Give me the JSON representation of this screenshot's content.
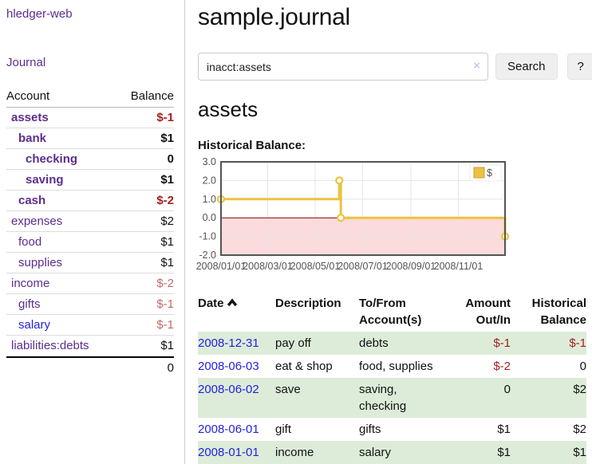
{
  "brand": "hledger-web",
  "nav": {
    "journal": "Journal"
  },
  "sidebar": {
    "col_account": "Account",
    "col_balance": "Balance",
    "accounts": [
      {
        "name": "assets",
        "balance": "$-1",
        "indent": 1,
        "bold": true,
        "balance_class": "neg-strong"
      },
      {
        "name": "bank",
        "balance": "$1",
        "indent": 2,
        "bold": true,
        "balance_class": ""
      },
      {
        "name": "checking",
        "balance": "0",
        "indent": 3,
        "bold": true,
        "balance_class": ""
      },
      {
        "name": "saving",
        "balance": "$1",
        "indent": 3,
        "bold": true,
        "balance_class": ""
      },
      {
        "name": "cash",
        "balance": "$-2",
        "indent": 2,
        "bold": true,
        "balance_class": "neg-strong"
      },
      {
        "name": "expenses",
        "balance": "$2",
        "indent": 1,
        "bold": false,
        "balance_class": ""
      },
      {
        "name": "food",
        "balance": "$1",
        "indent": 2,
        "bold": false,
        "balance_class": ""
      },
      {
        "name": "supplies",
        "balance": "$1",
        "indent": 2,
        "bold": false,
        "balance_class": ""
      },
      {
        "name": "income",
        "balance": "$-2",
        "indent": 1,
        "bold": false,
        "balance_class": "neg-soft"
      },
      {
        "name": "gifts",
        "balance": "$-1",
        "indent": 2,
        "bold": false,
        "balance_class": "neg-soft"
      },
      {
        "name": "salary",
        "balance": "$-1",
        "indent": 2,
        "bold": false,
        "balance_class": "neg-soft",
        "link_color": "blue"
      },
      {
        "name": "liabilities:debts",
        "balance": "$1",
        "indent": 1,
        "bold": false,
        "balance_class": ""
      }
    ],
    "total": "0"
  },
  "header": {
    "title": "sample.journal"
  },
  "search": {
    "value": "inacct:assets",
    "clear": "×",
    "button": "Search",
    "help": "?"
  },
  "account_view": {
    "heading": "assets",
    "section_label": "Historical Balance:"
  },
  "chart_data": {
    "type": "line",
    "title": "Historical Balance",
    "step": true,
    "x_start": "2008-01-01",
    "x_end": "2008-12-31",
    "x_ticks": [
      "2008/01/01",
      "2008/03/01",
      "2008/05/01",
      "2008/07/01",
      "2008/09/01",
      "2008/11/01"
    ],
    "y_ticks": [
      3,
      2,
      1,
      0,
      -1,
      -2
    ],
    "ylim": [
      -2,
      3
    ],
    "series": [
      {
        "name": "$",
        "color": "#edc240",
        "points": [
          [
            "2008-01-01",
            1
          ],
          [
            "2008-06-01",
            2
          ],
          [
            "2008-06-03",
            0
          ],
          [
            "2008-12-31",
            -1
          ]
        ]
      }
    ],
    "legend": {
      "label": "$",
      "position": "top-right"
    },
    "negative_region_fill": "#fbdbdb",
    "zero_line_color": "#8b0000",
    "grid": true
  },
  "register": {
    "columns": [
      {
        "label": "Date",
        "sort": "asc"
      },
      {
        "label": "Description"
      },
      {
        "label": "To/From Account(s)",
        "line1": "To/From",
        "line2": "Account(s)"
      },
      {
        "label": "Amount Out/In",
        "line1": "Amount",
        "line2": "Out/In"
      },
      {
        "label": "Historical Balance",
        "line1": "Historical",
        "line2": "Balance"
      }
    ],
    "rows": [
      {
        "date": "2008-12-31",
        "description": "pay off",
        "accounts": "debts",
        "amount": "$-1",
        "balance": "$-1",
        "amount_neg": true,
        "balance_neg": true,
        "shaded": true
      },
      {
        "date": "2008-06-03",
        "description": "eat & shop",
        "accounts": "food, supplies",
        "amount": "$-2",
        "balance": "0",
        "amount_neg": true,
        "balance_neg": false,
        "shaded": false
      },
      {
        "date": "2008-06-02",
        "description": "save",
        "accounts": "saving, checking",
        "amount": "0",
        "balance": "$2",
        "amount_neg": false,
        "balance_neg": false,
        "shaded": true
      },
      {
        "date": "2008-06-01",
        "description": "gift",
        "accounts": "gifts",
        "amount": "$1",
        "balance": "$2",
        "amount_neg": false,
        "balance_neg": false,
        "shaded": false
      },
      {
        "date": "2008-01-01",
        "description": "income",
        "accounts": "salary",
        "amount": "$1",
        "balance": "$1",
        "amount_neg": false,
        "balance_neg": false,
        "shaded": true
      }
    ]
  },
  "colors": {
    "link_purple": "#5b2d90",
    "link_blue": "#2222dd",
    "negative_strong": "#a31f1f",
    "negative_soft": "#c36a6a",
    "row_stripe_green": "#ddecd9",
    "chart_series_yellow": "#edc240",
    "chart_negative_fill": "#fbdbdb",
    "chart_zero_line": "#8b0000"
  }
}
